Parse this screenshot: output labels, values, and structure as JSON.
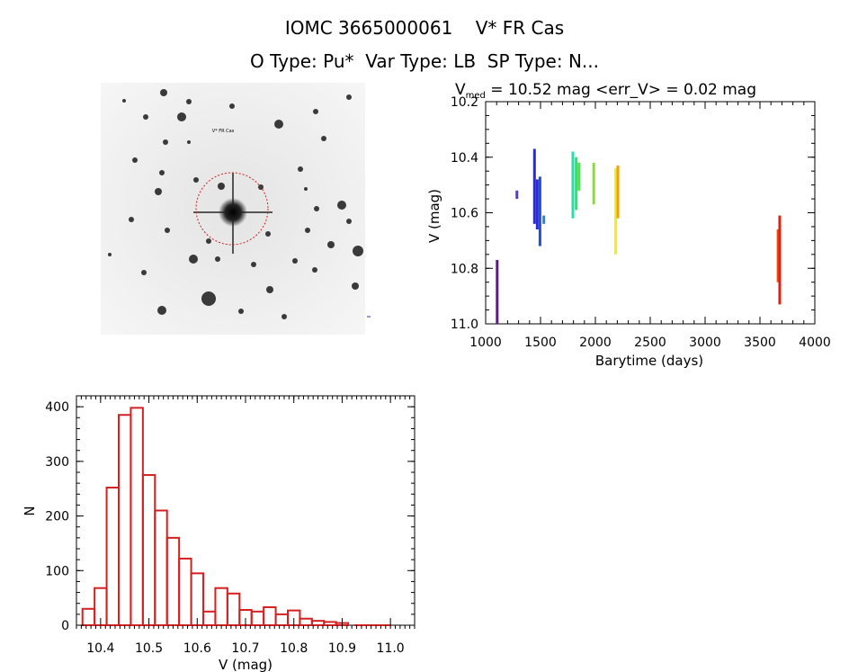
{
  "header": {
    "title": "IOMC 3665000061    V* FR Cas",
    "subtitle": "O Type: Pu*  Var Type: LB  SP Type: N..."
  },
  "image_panel": {
    "labels": [
      "V* FR Cas"
    ]
  },
  "chart_data": [
    {
      "type": "scatter",
      "title_parts": {
        "main": "V",
        "sub": "med",
        "rest": " = 10.52 mag <err_V> = 0.02 mag"
      },
      "xlabel": "Barytime (days)",
      "ylabel": "V (mag)",
      "xlim": [
        1000,
        4000
      ],
      "ylim": [
        11.0,
        10.2
      ],
      "y_inverted": true,
      "x_ticks": [
        1000,
        1500,
        2000,
        2500,
        3000,
        3500,
        4000
      ],
      "y_ticks": [
        "10.2",
        "10.4",
        "10.6",
        "10.8",
        "11.0"
      ],
      "y_tick_values": [
        10.2,
        10.4,
        10.6,
        10.8,
        11.0
      ],
      "groups": [
        {
          "x": 1105,
          "ymin": 10.77,
          "ymax": 11.0,
          "color": "#5a1a8a"
        },
        {
          "x": 1285,
          "ymin": 10.52,
          "ymax": 10.55,
          "color": "#5a3ad0"
        },
        {
          "x": 1445,
          "ymin": 10.37,
          "ymax": 10.64,
          "color": "#2a2ad8"
        },
        {
          "x": 1470,
          "ymin": 10.48,
          "ymax": 10.66,
          "color": "#2a2ad8"
        },
        {
          "x": 1495,
          "ymin": 10.47,
          "ymax": 10.72,
          "color": "#2050d8"
        },
        {
          "x": 1530,
          "ymin": 10.61,
          "ymax": 10.64,
          "color": "#1e88e0"
        },
        {
          "x": 1795,
          "ymin": 10.38,
          "ymax": 10.62,
          "color": "#22e0a8"
        },
        {
          "x": 1825,
          "ymin": 10.4,
          "ymax": 10.59,
          "color": "#30e070"
        },
        {
          "x": 1850,
          "ymin": 10.42,
          "ymax": 10.52,
          "color": "#50e050"
        },
        {
          "x": 1985,
          "ymin": 10.42,
          "ymax": 10.57,
          "color": "#88e030"
        },
        {
          "x": 2185,
          "ymin": 10.44,
          "ymax": 10.75,
          "color": "#f0f010"
        },
        {
          "x": 2205,
          "ymin": 10.43,
          "ymax": 10.62,
          "color": "#f0a010"
        },
        {
          "x": 3665,
          "ymin": 10.66,
          "ymax": 10.85,
          "color": "#f05010"
        },
        {
          "x": 3680,
          "ymin": 10.61,
          "ymax": 10.93,
          "color": "#e02010"
        }
      ]
    },
    {
      "type": "bar",
      "xlabel": "V (mag)",
      "ylabel": "N",
      "xlim": [
        10.35,
        11.05
      ],
      "ylim": [
        0,
        420
      ],
      "x_ticks": [
        "10.4",
        "10.5",
        "10.6",
        "10.7",
        "10.8",
        "10.9",
        "11.0"
      ],
      "x_tick_values": [
        10.4,
        10.5,
        10.6,
        10.7,
        10.8,
        10.9,
        11.0
      ],
      "y_ticks": [
        "0",
        "100",
        "200",
        "300",
        "400"
      ],
      "y_tick_values": [
        0,
        100,
        200,
        300,
        400
      ],
      "bar_color": "#d42020",
      "bin_width": 0.025,
      "bins": [
        10.375,
        10.4,
        10.425,
        10.45,
        10.475,
        10.5,
        10.525,
        10.55,
        10.575,
        10.6,
        10.625,
        10.65,
        10.675,
        10.7,
        10.725,
        10.75,
        10.775,
        10.8,
        10.825,
        10.85,
        10.875,
        10.9,
        10.925,
        10.95,
        10.975
      ],
      "values": [
        30,
        68,
        252,
        385,
        398,
        275,
        210,
        160,
        122,
        95,
        25,
        68,
        58,
        28,
        25,
        33,
        20,
        27,
        12,
        8,
        6,
        4,
        0,
        0,
        0
      ]
    }
  ]
}
